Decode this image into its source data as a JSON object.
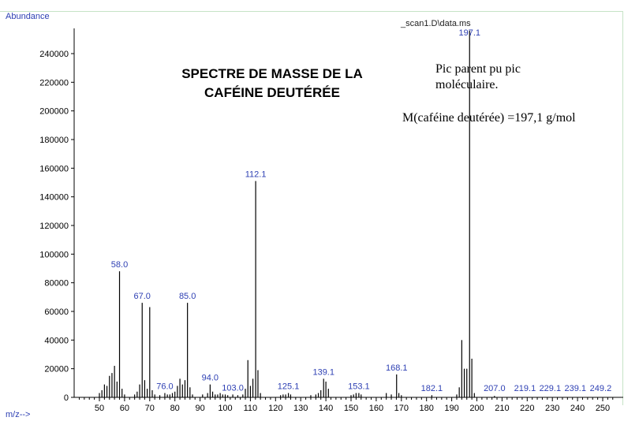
{
  "header": {
    "ylabel": "Abundance",
    "xlabel": "m/z-->",
    "scan_label": "_scan1.D\\data.ms"
  },
  "annotations": {
    "title_line1": "SPECTRE DE MASSE DE LA",
    "title_line2": "CAFÉINE DEUTÉRÉE",
    "note_line1": "Pic parent pu pic",
    "note_line2": "moléculaire.",
    "note_mass": "M(caféine deutérée) =197,1 g/mol"
  },
  "colors": {
    "axis": "#000000",
    "peak": "#000000",
    "label": "#2d3fb3",
    "frame": "#c6e3c6"
  },
  "chart_data": {
    "type": "bar",
    "title": "SPECTRE DE MASSE DE LA CAFÉINE DEUTÉRÉE",
    "xlabel": "m/z-->",
    "ylabel": "Abundance",
    "xlim": [
      41,
      255
    ],
    "ylim": [
      0,
      256000
    ],
    "x_ticks": [
      50,
      60,
      70,
      80,
      90,
      100,
      110,
      120,
      130,
      140,
      150,
      160,
      170,
      180,
      190,
      200,
      210,
      220,
      230,
      240,
      250
    ],
    "y_ticks": [
      20000,
      40000,
      60000,
      80000,
      100000,
      120000,
      140000,
      160000,
      180000,
      200000,
      220000,
      240000
    ],
    "peaks": [
      {
        "x": 50,
        "y": 3000
      },
      {
        "x": 51,
        "y": 5000
      },
      {
        "x": 52,
        "y": 9000
      },
      {
        "x": 53,
        "y": 8000
      },
      {
        "x": 54,
        "y": 15000
      },
      {
        "x": 55,
        "y": 17000
      },
      {
        "x": 56,
        "y": 22000
      },
      {
        "x": 57,
        "y": 11000
      },
      {
        "x": 58,
        "y": 88000
      },
      {
        "x": 59,
        "y": 6000
      },
      {
        "x": 60,
        "y": 2000
      },
      {
        "x": 64,
        "y": 2000
      },
      {
        "x": 65,
        "y": 4000
      },
      {
        "x": 66,
        "y": 9000
      },
      {
        "x": 67,
        "y": 66000
      },
      {
        "x": 68,
        "y": 12000
      },
      {
        "x": 69,
        "y": 6000
      },
      {
        "x": 70,
        "y": 63000
      },
      {
        "x": 71,
        "y": 5000
      },
      {
        "x": 72,
        "y": 2000
      },
      {
        "x": 74,
        "y": 1500
      },
      {
        "x": 76,
        "y": 3000
      },
      {
        "x": 77,
        "y": 2000
      },
      {
        "x": 78,
        "y": 2000
      },
      {
        "x": 79,
        "y": 3000
      },
      {
        "x": 80,
        "y": 4000
      },
      {
        "x": 81,
        "y": 8000
      },
      {
        "x": 82,
        "y": 13000
      },
      {
        "x": 83,
        "y": 9000
      },
      {
        "x": 84,
        "y": 12000
      },
      {
        "x": 85,
        "y": 66000
      },
      {
        "x": 86,
        "y": 7000
      },
      {
        "x": 87,
        "y": 2000
      },
      {
        "x": 91,
        "y": 2000
      },
      {
        "x": 93,
        "y": 3000
      },
      {
        "x": 94,
        "y": 9000
      },
      {
        "x": 95,
        "y": 4000
      },
      {
        "x": 96,
        "y": 2000
      },
      {
        "x": 97,
        "y": 2000
      },
      {
        "x": 98,
        "y": 3000
      },
      {
        "x": 99,
        "y": 2000
      },
      {
        "x": 100,
        "y": 2000
      },
      {
        "x": 101,
        "y": 1500
      },
      {
        "x": 103,
        "y": 2000
      },
      {
        "x": 105,
        "y": 1500
      },
      {
        "x": 107,
        "y": 2000
      },
      {
        "x": 108,
        "y": 6000
      },
      {
        "x": 109,
        "y": 26000
      },
      {
        "x": 110,
        "y": 8000
      },
      {
        "x": 111,
        "y": 13000
      },
      {
        "x": 112.1,
        "y": 151000
      },
      {
        "x": 113,
        "y": 19000
      },
      {
        "x": 114,
        "y": 3000
      },
      {
        "x": 122,
        "y": 1500
      },
      {
        "x": 123,
        "y": 2000
      },
      {
        "x": 124,
        "y": 2000
      },
      {
        "x": 125.1,
        "y": 3000
      },
      {
        "x": 126,
        "y": 2000
      },
      {
        "x": 134,
        "y": 1500
      },
      {
        "x": 136,
        "y": 2000
      },
      {
        "x": 137,
        "y": 3000
      },
      {
        "x": 138,
        "y": 5000
      },
      {
        "x": 139.1,
        "y": 13000
      },
      {
        "x": 140,
        "y": 11000
      },
      {
        "x": 141,
        "y": 6000
      },
      {
        "x": 150,
        "y": 1500
      },
      {
        "x": 151,
        "y": 2000
      },
      {
        "x": 152,
        "y": 3000
      },
      {
        "x": 153.1,
        "y": 3000
      },
      {
        "x": 154,
        "y": 2000
      },
      {
        "x": 164,
        "y": 3000
      },
      {
        "x": 166,
        "y": 2000
      },
      {
        "x": 168.1,
        "y": 16000
      },
      {
        "x": 169,
        "y": 3000
      },
      {
        "x": 170,
        "y": 1500
      },
      {
        "x": 182.1,
        "y": 1500
      },
      {
        "x": 192,
        "y": 2000
      },
      {
        "x": 193,
        "y": 7000
      },
      {
        "x": 194,
        "y": 40000
      },
      {
        "x": 195,
        "y": 20000
      },
      {
        "x": 196,
        "y": 20000
      },
      {
        "x": 197.1,
        "y": 256000
      },
      {
        "x": 198,
        "y": 27000
      },
      {
        "x": 199,
        "y": 3000
      },
      {
        "x": 207,
        "y": 1000
      }
    ],
    "peak_labels": [
      {
        "x": 58.0,
        "y": 88000,
        "text": "58.0"
      },
      {
        "x": 67.0,
        "y": 66000,
        "text": "67.0"
      },
      {
        "x": 76.0,
        "y": 3000,
        "text": "76.0"
      },
      {
        "x": 85.0,
        "y": 66000,
        "text": "85.0"
      },
      {
        "x": 94.0,
        "y": 9000,
        "text": "94.0"
      },
      {
        "x": 103.0,
        "y": 2000,
        "text": "103.0"
      },
      {
        "x": 112.1,
        "y": 151000,
        "text": "112.1"
      },
      {
        "x": 125.1,
        "y": 3000,
        "text": "125.1"
      },
      {
        "x": 139.1,
        "y": 13000,
        "text": "139.1"
      },
      {
        "x": 153.1,
        "y": 3000,
        "text": "153.1"
      },
      {
        "x": 168.1,
        "y": 16000,
        "text": "168.1"
      },
      {
        "x": 182.1,
        "y": 1500,
        "text": "182.1"
      },
      {
        "x": 197.1,
        "y": 256000,
        "text": "197.1"
      },
      {
        "x": 207.0,
        "y": 1000,
        "text": "207.0"
      },
      {
        "x": 219.1,
        "y": 500,
        "text": "219.1"
      },
      {
        "x": 229.1,
        "y": 500,
        "text": "229.1"
      },
      {
        "x": 239.1,
        "y": 500,
        "text": "239.1"
      },
      {
        "x": 249.2,
        "y": 500,
        "text": "249.2"
      }
    ]
  }
}
